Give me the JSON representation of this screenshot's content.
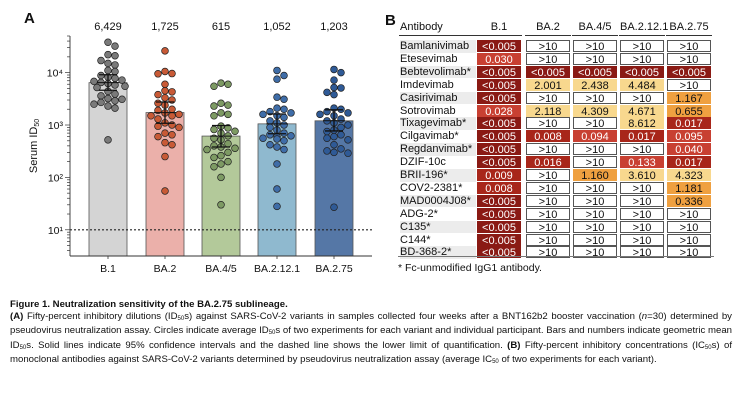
{
  "panel_a": {
    "letter": "A",
    "chart_data": {
      "type": "bar",
      "title": "",
      "xlabel": "",
      "ylabel": "Serum ID50",
      "yscale": "log10",
      "ylim": [
        3.16,
        50000
      ],
      "yticks": [
        10,
        100,
        1000,
        10000
      ],
      "ytick_labels": [
        "10¹",
        "10²",
        "10³",
        "10⁴"
      ],
      "lower_limit_of_quantification": 10,
      "categories": [
        "B.1",
        "BA.2",
        "BA.4/5",
        "BA.2.12.1",
        "BA.2.75"
      ],
      "geometric_means": [
        6429,
        1725,
        615,
        1052,
        1203
      ],
      "geometric_mean_labels": [
        "6,429",
        "1,725",
        "615",
        "1,052",
        "1,203"
      ],
      "ci95": [
        [
          4600,
          9100
        ],
        [
          1080,
          2750
        ],
        [
          380,
          980
        ],
        [
          680,
          1620
        ],
        [
          770,
          1950
        ]
      ],
      "bar_colors": [
        "#d4d4d4",
        "#ebb0aa",
        "#b3c99a",
        "#8fb9cf",
        "#5577a6"
      ],
      "dot_colors": [
        "#7a7a7a",
        "#c85a36",
        "#7d9a63",
        "#3f6da8",
        "#2f5a96"
      ],
      "points": [
        [
          38000,
          32000,
          22000,
          21000,
          17000,
          15000,
          14000,
          11000,
          10500,
          8800,
          8200,
          7800,
          7200,
          6800,
          6500,
          6200,
          5800,
          5500,
          5200,
          4400,
          3900,
          3600,
          3200,
          3100,
          2900,
          2700,
          2500,
          2300,
          2100,
          520
        ],
        [
          26000,
          10500,
          9600,
          9500,
          6000,
          4500,
          4300,
          3800,
          3300,
          3000,
          2600,
          2400,
          2000,
          1900,
          1700,
          1600,
          1500,
          1500,
          1300,
          1100,
          1000,
          950,
          900,
          700,
          650,
          600,
          460,
          420,
          250,
          55
        ],
        [
          6300,
          5500,
          6000,
          2600,
          2400,
          2300,
          1700,
          1600,
          1500,
          950,
          880,
          820,
          760,
          700,
          620,
          560,
          520,
          440,
          400,
          380,
          360,
          340,
          300,
          260,
          240,
          200,
          180,
          160,
          100,
          30
        ],
        [
          11000,
          8800,
          7500,
          3400,
          3100,
          2100,
          2000,
          1800,
          1700,
          1600,
          1500,
          1400,
          1200,
          1100,
          1000,
          900,
          800,
          700,
          650,
          620,
          600,
          560,
          540,
          500,
          420,
          380,
          340,
          180,
          60,
          28
        ],
        [
          11500,
          10000,
          7200,
          5200,
          5100,
          4200,
          3800,
          2100,
          2000,
          1800,
          1700,
          1600,
          1500,
          1300,
          1200,
          1100,
          1000,
          900,
          800,
          750,
          650,
          600,
          560,
          520,
          420,
          350,
          320,
          300,
          290,
          27
        ]
      ]
    }
  },
  "panel_b": {
    "letter": "B",
    "columns": [
      "Antibody",
      "B.1",
      "BA.2",
      "BA.4/5",
      "BA.2.12.1",
      "BA.2.75"
    ],
    "rows": [
      {
        "name": "Bamlanivimab",
        "values": [
          "<0.005",
          ">10",
          ">10",
          ">10",
          ">10"
        ]
      },
      {
        "name": "Etesevimab",
        "values": [
          "0.030",
          ">10",
          ">10",
          ">10",
          ">10"
        ]
      },
      {
        "name": "Bebtevolimab*",
        "values": [
          "<0.005",
          "<0.005",
          "<0.005",
          "<0.005",
          "<0.005"
        ]
      },
      {
        "name": "Imdevimab",
        "values": [
          "<0.005",
          "2.001",
          "2.438",
          "4.484",
          ">10"
        ]
      },
      {
        "name": "Casirivimab",
        "values": [
          "<0.005",
          ">10",
          ">10",
          ">10",
          "1.167"
        ]
      },
      {
        "name": "Sotrovimab",
        "values": [
          "0.028",
          "2.118",
          "4.309",
          "4.671",
          "0.655"
        ]
      },
      {
        "name": "Tixagevimab*",
        "values": [
          "<0.005",
          ">10",
          ">10",
          "8.612",
          "0.017"
        ]
      },
      {
        "name": "Cilgavimab*",
        "values": [
          "<0.005",
          "0.008",
          "0.094",
          "0.017",
          "0.095"
        ]
      },
      {
        "name": "Regdanvimab*",
        "values": [
          "<0.005",
          ">10",
          ">10",
          ">10",
          "0.040"
        ]
      },
      {
        "name": "DZIF-10c",
        "values": [
          "<0.005",
          "0.016",
          ">10",
          "0.133",
          "0.017"
        ]
      },
      {
        "name": "BRII-196*",
        "values": [
          "0.009",
          ">10",
          "1.160",
          "3.610",
          "4.323"
        ]
      },
      {
        "name": "COV2-2381*",
        "values": [
          "0.008",
          ">10",
          ">10",
          ">10",
          "1.181"
        ]
      },
      {
        "name": "MAD0004J08*",
        "values": [
          "<0.005",
          ">10",
          ">10",
          ">10",
          "0.336"
        ]
      },
      {
        "name": "ADG-2*",
        "values": [
          "<0.005",
          ">10",
          ">10",
          ">10",
          ">10"
        ]
      },
      {
        "name": "C135*",
        "values": [
          "<0.005",
          ">10",
          ">10",
          ">10",
          ">10"
        ]
      },
      {
        "name": "C144*",
        "values": [
          "<0.005",
          ">10",
          ">10",
          ">10",
          ">10"
        ]
      },
      {
        "name": "BD-368-2*",
        "values": [
          "<0.005",
          ">10",
          ">10",
          ">10",
          ">10"
        ]
      }
    ],
    "color_scale": {
      "lt_0_005": "#8a1a14",
      "0_005_to_0_02": "#a8261a",
      "0_02_to_0_2": "#c84032",
      "0_2_to_2": "#efa040",
      "2_to_10": "#f8d88e",
      "gt_10": "#ffffff"
    },
    "footnote": "* Fc-unmodified IgG1 antibody."
  },
  "caption": {
    "title": "Figure 1. Neutralization sensitivity of the BA.2.75 sublineage.",
    "a_label": "(A)",
    "a_text_1": " Fifty-percent inhibitory dilutions (ID",
    "sub50": "50",
    "a_text_2": "s) against SARS-CoV-2 variants in samples collected four weeks after a BNT162b2 booster vaccination (",
    "n_italic": "n",
    "a_text_3": "=30) determined by pseudovirus neutralization assay. Circles indicate average ID",
    "a_text_4": "s of two experiments for each variant and individual participant. Bars and numbers indicate geometric mean ID",
    "a_text_5": "s. Solid lines indicate 95% confidence intervals and the dashed line shows the lower limit of quantification. ",
    "b_label": "(B)",
    "b_text_1": " Fifty-percent inhibitory concentrations (IC",
    "b_text_2": "s) of monoclonal antibodies against SARS-CoV-2 variants determined by pseudovirus neutralization assay (average IC",
    "b_text_3": " of two experiments for each variant)."
  }
}
